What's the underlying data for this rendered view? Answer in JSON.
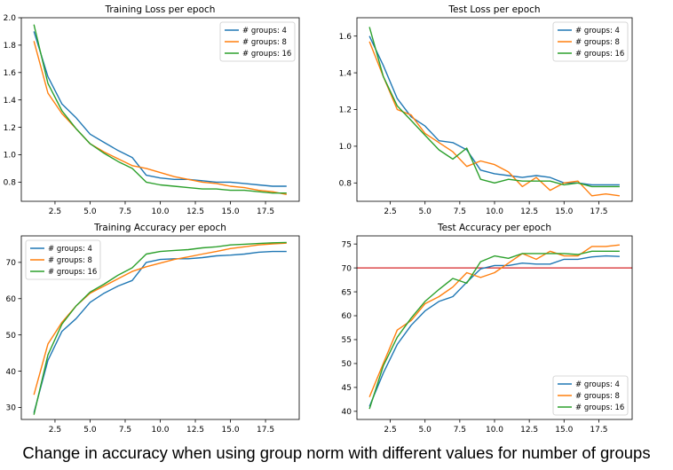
{
  "caption": "Change in accuracy when using group norm with different values for number of groups",
  "colors": {
    "g4": "#1f77b4",
    "g8": "#ff7f0e",
    "g16": "#2ca02c",
    "threshold": "#d62728"
  },
  "chart_data": [
    {
      "type": "line",
      "title": "Training Loss per epoch",
      "xlabel": "",
      "ylabel": "",
      "xlim": [
        0.1,
        19.9
      ],
      "ylim": [
        0.66,
        2.0
      ],
      "xticks": [
        2.5,
        5.0,
        7.5,
        10.0,
        12.5,
        15.0,
        17.5
      ],
      "yticks": [
        0.8,
        1.0,
        1.2,
        1.4,
        1.6,
        1.8,
        2.0
      ],
      "legend_position": "upper right",
      "x": [
        1,
        2,
        3,
        4,
        5,
        6,
        7,
        8,
        9,
        10,
        11,
        12,
        13,
        14,
        15,
        16,
        17,
        18,
        19
      ],
      "series": [
        {
          "name": "# groups: 4",
          "color": "#1f77b4",
          "values": [
            1.9,
            1.57,
            1.37,
            1.27,
            1.15,
            1.09,
            1.03,
            0.98,
            0.85,
            0.83,
            0.82,
            0.82,
            0.81,
            0.8,
            0.8,
            0.79,
            0.78,
            0.77,
            0.77
          ]
        },
        {
          "name": "# groups: 8",
          "color": "#ff7f0e",
          "values": [
            1.83,
            1.45,
            1.3,
            1.19,
            1.08,
            1.02,
            0.97,
            0.92,
            0.9,
            0.87,
            0.84,
            0.82,
            0.8,
            0.79,
            0.77,
            0.76,
            0.74,
            0.73,
            0.71
          ]
        },
        {
          "name": "# groups: 16",
          "color": "#2ca02c",
          "values": [
            1.95,
            1.52,
            1.32,
            1.19,
            1.08,
            1.01,
            0.95,
            0.9,
            0.8,
            0.78,
            0.77,
            0.76,
            0.75,
            0.75,
            0.74,
            0.74,
            0.73,
            0.72,
            0.72
          ]
        }
      ]
    },
    {
      "type": "line",
      "title": "Test Loss per epoch",
      "xlabel": "",
      "ylabel": "",
      "xlim": [
        0.1,
        19.9
      ],
      "ylim": [
        0.7,
        1.7
      ],
      "xticks": [
        2.5,
        5.0,
        7.5,
        10.0,
        12.5,
        15.0,
        17.5
      ],
      "yticks": [
        0.8,
        1.0,
        1.2,
        1.4,
        1.6
      ],
      "legend_position": "upper right",
      "x": [
        1,
        2,
        3,
        4,
        5,
        6,
        7,
        8,
        9,
        10,
        11,
        12,
        13,
        14,
        15,
        16,
        17,
        18,
        19
      ],
      "series": [
        {
          "name": "# groups: 4",
          "color": "#1f77b4",
          "values": [
            1.6,
            1.44,
            1.26,
            1.16,
            1.11,
            1.03,
            1.02,
            0.98,
            0.87,
            0.85,
            0.84,
            0.83,
            0.84,
            0.83,
            0.8,
            0.8,
            0.79,
            0.79,
            0.79
          ]
        },
        {
          "name": "# groups: 8",
          "color": "#ff7f0e",
          "values": [
            1.57,
            1.38,
            1.2,
            1.17,
            1.07,
            1.02,
            0.97,
            0.89,
            0.92,
            0.9,
            0.86,
            0.78,
            0.83,
            0.76,
            0.8,
            0.81,
            0.73,
            0.74,
            0.73
          ]
        },
        {
          "name": "# groups: 16",
          "color": "#2ca02c",
          "values": [
            1.65,
            1.38,
            1.22,
            1.14,
            1.06,
            0.98,
            0.93,
            0.99,
            0.82,
            0.8,
            0.82,
            0.81,
            0.81,
            0.81,
            0.79,
            0.8,
            0.78,
            0.78,
            0.78
          ]
        }
      ]
    },
    {
      "type": "line",
      "title": "Training Accuracy per epoch",
      "xlabel": "",
      "ylabel": "",
      "xlim": [
        0.1,
        19.9
      ],
      "ylim": [
        26.7,
        77.3
      ],
      "xticks": [
        2.5,
        5.0,
        7.5,
        10.0,
        12.5,
        15.0,
        17.5
      ],
      "yticks": [
        30,
        40,
        50,
        60,
        70
      ],
      "legend_position": "upper left",
      "x": [
        1,
        2,
        3,
        4,
        5,
        6,
        7,
        8,
        9,
        10,
        11,
        12,
        13,
        14,
        15,
        16,
        17,
        18,
        19
      ],
      "series": [
        {
          "name": "# groups: 4",
          "color": "#1f77b4",
          "values": [
            28.5,
            43.0,
            51.0,
            54.5,
            59.0,
            61.5,
            63.5,
            65.0,
            70.0,
            70.8,
            71.0,
            71.0,
            71.3,
            71.8,
            72.0,
            72.3,
            72.8,
            73.0,
            73.0
          ]
        },
        {
          "name": "# groups: 8",
          "color": "#ff7f0e",
          "values": [
            33.5,
            47.5,
            53.5,
            58.0,
            61.5,
            63.5,
            65.5,
            67.5,
            68.8,
            69.8,
            70.8,
            71.5,
            72.3,
            73.0,
            73.8,
            74.3,
            74.8,
            75.1,
            75.3
          ]
        },
        {
          "name": "# groups: 16",
          "color": "#2ca02c",
          "values": [
            28.0,
            44.5,
            53.0,
            58.0,
            61.8,
            64.0,
            66.5,
            68.5,
            72.3,
            73.0,
            73.3,
            73.5,
            74.0,
            74.3,
            74.8,
            75.0,
            75.2,
            75.4,
            75.5
          ]
        }
      ]
    },
    {
      "type": "line",
      "title": "Test Accuracy per epoch",
      "xlabel": "",
      "ylabel": "",
      "xlim": [
        0.1,
        19.9
      ],
      "ylim": [
        38.3,
        76.7
      ],
      "xticks": [
        2.5,
        5.0,
        7.5,
        10.0,
        12.5,
        15.0,
        17.5
      ],
      "yticks": [
        40,
        45,
        50,
        55,
        60,
        65,
        70,
        75
      ],
      "legend_position": "lower right",
      "hline": {
        "y": 70,
        "color": "#d62728"
      },
      "x": [
        1,
        2,
        3,
        4,
        5,
        6,
        7,
        8,
        9,
        10,
        11,
        12,
        13,
        14,
        15,
        16,
        17,
        18,
        19
      ],
      "series": [
        {
          "name": "# groups: 4",
          "color": "#1f77b4",
          "values": [
            41.0,
            48.0,
            54.0,
            58.0,
            61.0,
            63.0,
            64.0,
            67.0,
            69.8,
            70.5,
            70.5,
            71.0,
            70.8,
            70.8,
            71.8,
            71.8,
            72.3,
            72.5,
            72.4
          ]
        },
        {
          "name": "# groups: 8",
          "color": "#ff7f0e",
          "values": [
            43.0,
            50.0,
            57.0,
            59.0,
            62.5,
            64.0,
            66.0,
            69.0,
            68.0,
            69.0,
            71.0,
            73.0,
            71.8,
            73.5,
            72.5,
            72.5,
            74.5,
            74.5,
            74.8
          ]
        },
        {
          "name": "# groups: 16",
          "color": "#2ca02c",
          "values": [
            40.5,
            49.5,
            55.5,
            59.5,
            63.0,
            65.5,
            67.8,
            66.8,
            71.3,
            72.5,
            72.0,
            73.0,
            73.0,
            73.0,
            73.0,
            72.8,
            73.5,
            73.5,
            73.5
          ]
        }
      ]
    }
  ]
}
